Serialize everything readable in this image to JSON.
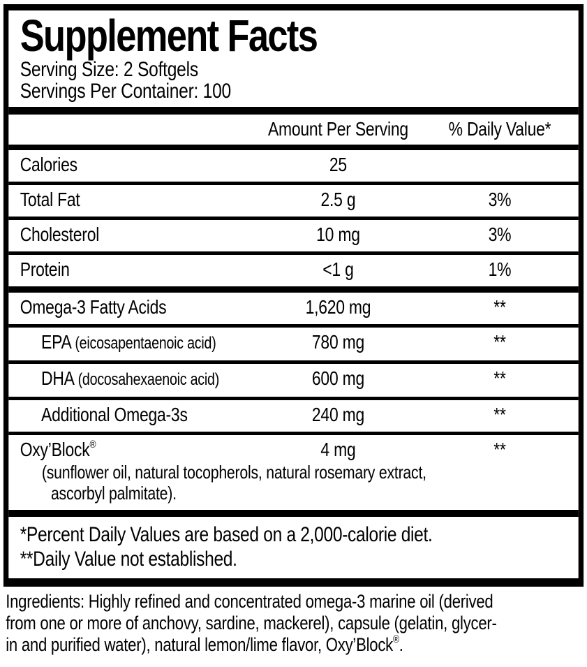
{
  "supplement_facts": {
    "title": "Supplement Facts",
    "serving_size": "Serving Size: 2 Softgels",
    "servings_per_container": "Servings Per Container: 100",
    "columns": {
      "amount_header": "Amount Per Serving",
      "daily_value_header": "% Daily Value*"
    },
    "rows": [
      {
        "name": "Calories",
        "amount": "25",
        "daily_value": ""
      },
      {
        "name": "Total Fat",
        "amount": "2.5 g",
        "daily_value": "3%"
      },
      {
        "name": "Cholesterol",
        "amount": "10 mg",
        "daily_value": "3%"
      },
      {
        "name": "Protein",
        "amount": "<1 g",
        "daily_value": "1%"
      },
      {
        "name": "Omega-3 Fatty Acids",
        "amount": "1,620 mg",
        "daily_value": "**"
      },
      {
        "name": "EPA",
        "name_detail": "(eicosapentaenoic acid)",
        "amount": "780 mg",
        "daily_value": "**"
      },
      {
        "name": "DHA",
        "name_detail": "(docosahexaenoic acid)",
        "amount": "600 mg",
        "daily_value": "**"
      },
      {
        "name": "Additional Omega-3s",
        "amount": "240 mg",
        "daily_value": "**"
      },
      {
        "name": "Oxy’Block",
        "registered_mark": "®",
        "amount": "4 mg",
        "daily_value": "**",
        "description_lines": [
          "(sunflower oil, natural tocopherols, natural rosemary extract,",
          "ascorbyl palmitate)."
        ]
      }
    ],
    "footnotes": [
      "*Percent Daily Values are based on a 2,000-calorie diet.",
      "**Daily Value not established."
    ]
  },
  "ingredients": {
    "lines": [
      "Ingredients: Highly refined and concentrated omega-3 marine oil (derived",
      "from one or more of anchovy, sardine, mackerel), capsule (gelatin, glycer-",
      "in and purified water), natural lemon/lime flavor, Oxy’Block"
    ],
    "registered_mark": "®",
    "suffix": "."
  },
  "colors": {
    "text": "#000000",
    "background": "#ffffff"
  }
}
